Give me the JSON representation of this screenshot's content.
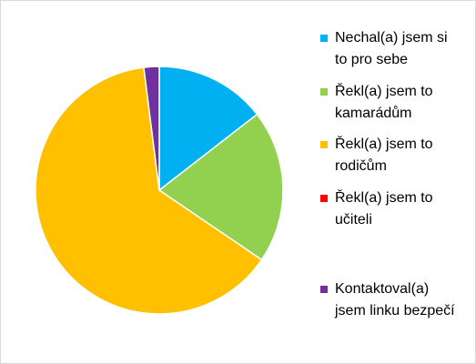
{
  "chart_data": {
    "type": "pie",
    "categories": [
      "Nechal(a) jsem si to pro sebe",
      "Řekl(a) jsem to kamarádům",
      "Řekl(a) jsem to rodičům",
      "Řekl(a) jsem to učiteli",
      "Kontaktoval(a) jsem linku bezpečí"
    ],
    "values": [
      14.5,
      20,
      63.5,
      0,
      2
    ],
    "colors": [
      "#00b0f0",
      "#92d050",
      "#ffc000",
      "#ff0000",
      "#7030a0"
    ],
    "legend": "right"
  }
}
